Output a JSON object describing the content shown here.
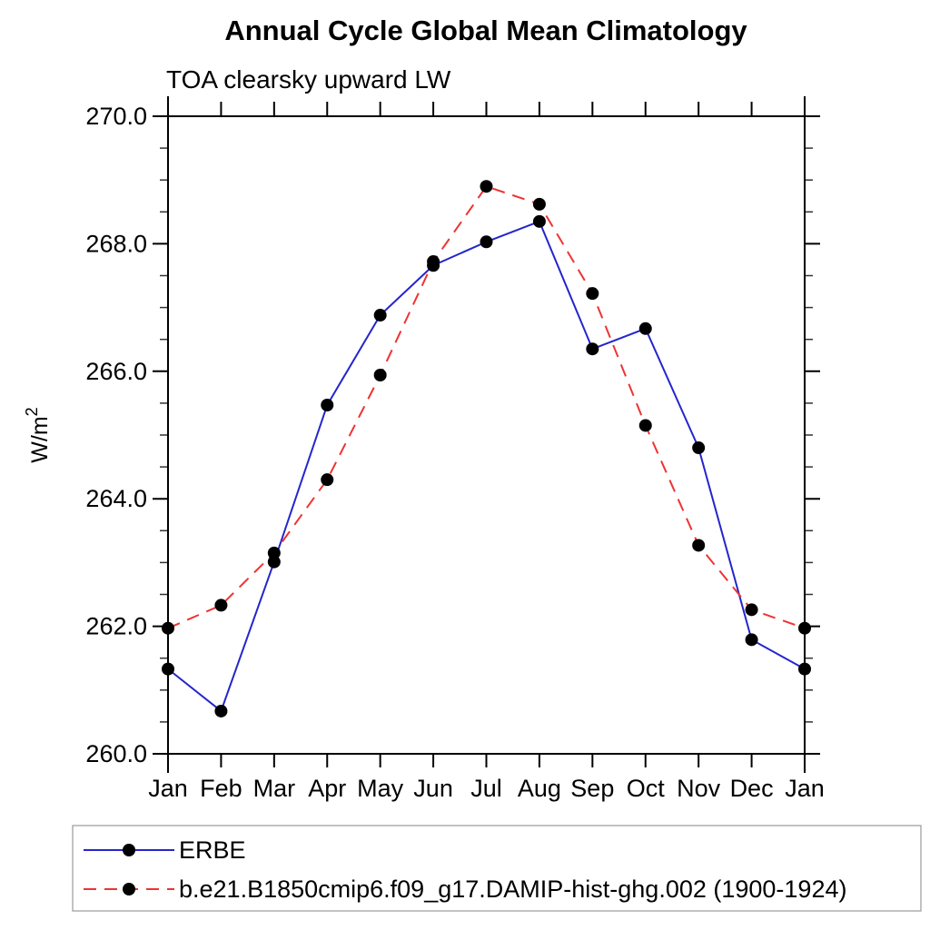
{
  "page": {
    "background": "#ffffff"
  },
  "chart_data": {
    "type": "line",
    "title": "Annual Cycle Global Mean Climatology",
    "subtitle": "TOA clearsky upward LW",
    "ylabel": "W/m^2",
    "ylabel_base": "W/m",
    "ylabel_sup": "2",
    "ylim": [
      260.0,
      270.0
    ],
    "y_major_ticks": {
      "values": [
        260.0,
        262.0,
        264.0,
        266.0,
        268.0,
        270.0
      ],
      "labels": [
        "260.0",
        "262.0",
        "264.0",
        "266.0",
        "268.0",
        "270.0"
      ]
    },
    "y_minor_step": 0.5,
    "grid": false,
    "categories": [
      "Jan",
      "Feb",
      "Mar",
      "Apr",
      "May",
      "Jun",
      "Jul",
      "Aug",
      "Sep",
      "Oct",
      "Nov",
      "Dec",
      "Jan"
    ],
    "series": [
      {
        "name": "ERBE",
        "color": "#2525cc",
        "line_style": "solid",
        "marker": "filled-circle",
        "marker_color": "#000000",
        "values": [
          261.33,
          260.67,
          263.01,
          265.47,
          266.88,
          267.66,
          268.03,
          268.35,
          266.35,
          266.67,
          264.8,
          261.79,
          261.33
        ]
      },
      {
        "name": "b.e21.B1850cmip6.f09_g17.DAMIP-hist-ghg.002 (1900-1924)",
        "color": "#ee3333",
        "line_style": "dashed",
        "marker": "filled-circle",
        "marker_color": "#000000",
        "values": [
          261.97,
          262.33,
          263.15,
          264.3,
          265.94,
          267.72,
          268.9,
          268.62,
          267.22,
          265.15,
          263.27,
          262.26,
          261.97
        ]
      }
    ],
    "legend": {
      "position": "bottom-left",
      "border_color": "#999999"
    }
  }
}
